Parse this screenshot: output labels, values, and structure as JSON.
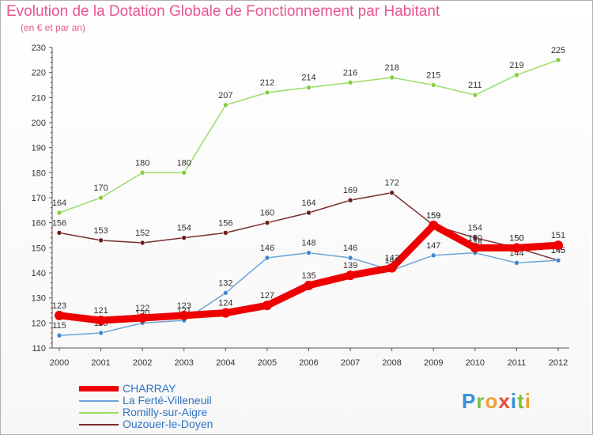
{
  "title": "Evolution de la Dotation Globale de Fonctionnement par Habitant",
  "subtitle": "(en € et par an)",
  "logo": {
    "text": "Proxiti"
  },
  "colors": {
    "text_accent": "#e8558f",
    "legend_text": "#2f73c4",
    "axis": "#555555",
    "tick_red": "#cc0000"
  },
  "chart_data": {
    "type": "line",
    "x": [
      "2000",
      "2001",
      "2002",
      "2003",
      "2004",
      "2005",
      "2006",
      "2007",
      "2008",
      "2009",
      "2010",
      "2011",
      "2012"
    ],
    "ylim": [
      110,
      230
    ],
    "yticks": [
      110,
      120,
      130,
      140,
      150,
      160,
      170,
      180,
      190,
      200,
      210,
      220,
      230
    ],
    "grid": false,
    "legend_position": "bottom-left",
    "series": [
      {
        "name": "Romilly-sur-Aigre",
        "color": "#99dd66",
        "marker_color": "#88cc44",
        "values": [
          164,
          170,
          180,
          180,
          207,
          212,
          214,
          216,
          218,
          215,
          211,
          219,
          225
        ]
      },
      {
        "name": "Ouzouer-le-Doyen",
        "color": "#7b2d2d",
        "marker_color": "#6a1e1e",
        "values": [
          156,
          153,
          152,
          154,
          156,
          160,
          164,
          169,
          172,
          159,
          154,
          150,
          145
        ]
      },
      {
        "name": "La Ferté-Villeneuil",
        "color": "#6fa3d6",
        "marker_color": "#3f88cc",
        "values": [
          115,
          116,
          120,
          121,
          132,
          146,
          148,
          146,
          141,
          147,
          148,
          144,
          145
        ]
      },
      {
        "name": "CHARRAY",
        "color": "#ee0000",
        "marker_color": "#ee0000",
        "values": [
          123,
          121,
          122,
          123,
          124,
          127,
          135,
          139,
          142,
          159,
          150,
          150,
          151
        ]
      }
    ],
    "legend": [
      "CHARRAY",
      "La Ferté-Villeneuil",
      "Romilly-sur-Aigre",
      "Ouzouer-le-Doyen"
    ]
  }
}
